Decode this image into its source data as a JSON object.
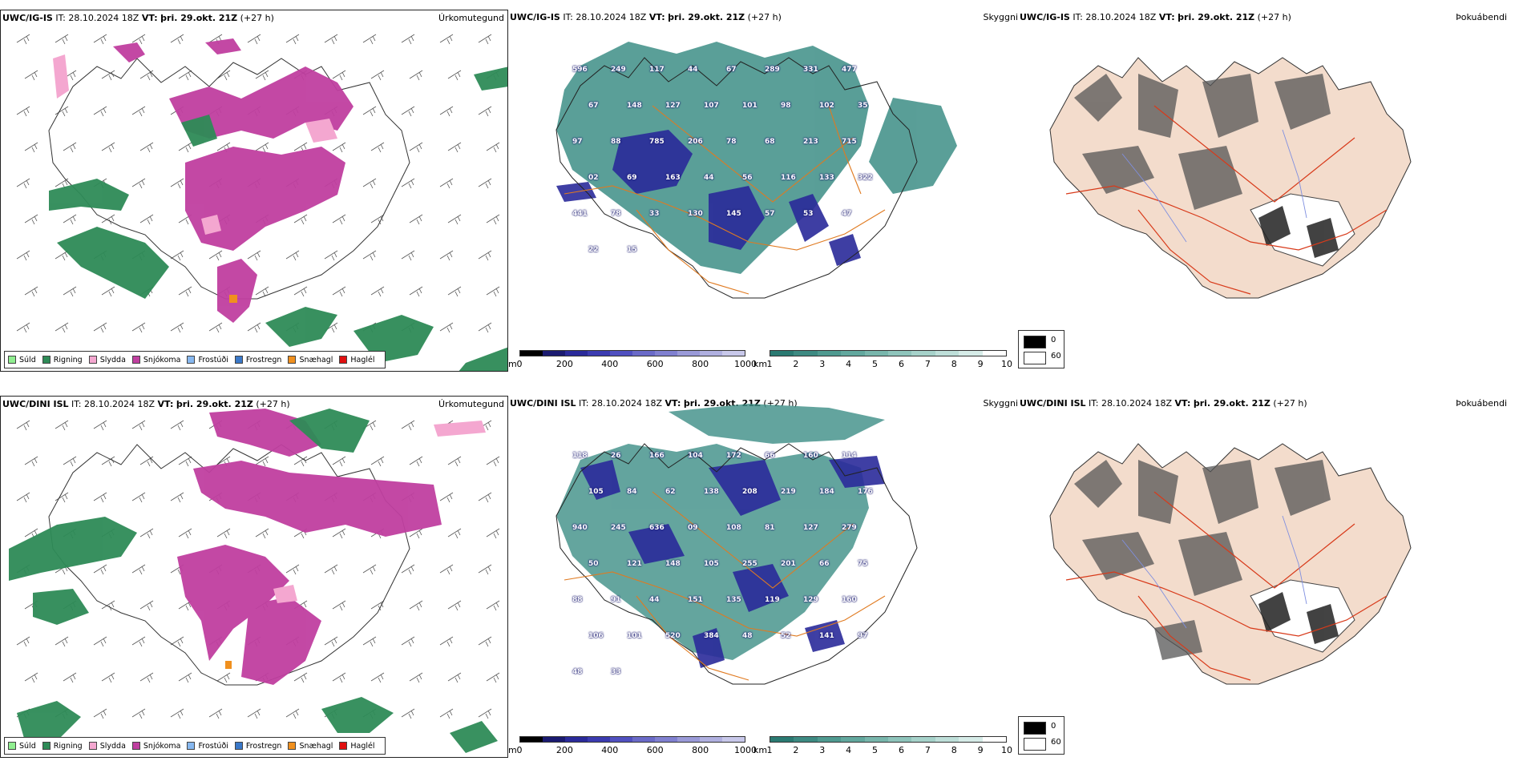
{
  "rows": [
    {
      "id": "uwc-ig-is",
      "precip": {
        "model": "UWC/IG-IS",
        "it_label": "IT:",
        "it_value": "28.10.2024 18Z",
        "vt_label": "VT:",
        "vt_value": "þri. 29.okt. 21Z",
        "lead": "(+27 h)",
        "title": "Úrkomutegund"
      },
      "cloud": {
        "model": "UWC/IG-IS",
        "it_label": "IT:",
        "it_value": "28.10.2024 18Z",
        "vt_label": "VT:",
        "vt_value": "þri. 29.okt. 21Z",
        "lead": "(+27 h)",
        "title": "Skyggni",
        "elevations": [
          "596",
          "249",
          "117",
          "44",
          "67",
          "289",
          "331",
          "477",
          "67",
          "148",
          "127",
          "107",
          "101",
          "98",
          "102",
          "35",
          "97",
          "88",
          "785",
          "206",
          "78",
          "68",
          "213",
          "715",
          "02",
          "69",
          "163",
          "44",
          "56",
          "116",
          "133",
          "322",
          "441",
          "78",
          "33",
          "130",
          "145",
          "57",
          "53",
          "47",
          "22",
          "15"
        ]
      },
      "fog": {
        "model": "UWC/IG-IS",
        "it_label": "IT:",
        "it_value": "28.10.2024 18Z",
        "vt_label": "VT:",
        "vt_value": "þri. 29.okt. 21Z",
        "lead": "(+27 h)",
        "title": "Þokuábendi"
      }
    },
    {
      "id": "uwc-dini-isl",
      "precip": {
        "model": "UWC/DINI ISL",
        "it_label": "IT:",
        "it_value": "28.10.2024 18Z",
        "vt_label": "VT:",
        "vt_value": "þri. 29.okt. 21Z",
        "lead": "(+27 h)",
        "title": "Úrkomutegund"
      },
      "cloud": {
        "model": "UWC/DINI ISL",
        "it_label": "IT:",
        "it_value": "28.10.2024 18Z",
        "vt_label": "VT:",
        "vt_value": "þri. 29.okt. 21Z",
        "lead": "(+27 h)",
        "title": "Skyggni",
        "elevations": [
          "118",
          "26",
          "166",
          "104",
          "172",
          "66",
          "160",
          "114",
          "105",
          "84",
          "62",
          "138",
          "208",
          "219",
          "184",
          "176",
          "940",
          "245",
          "636",
          "09",
          "108",
          "81",
          "127",
          "279",
          "50",
          "121",
          "148",
          "105",
          "255",
          "201",
          "66",
          "75",
          "88",
          "91",
          "44",
          "151",
          "135",
          "119",
          "129",
          "160",
          "106",
          "101",
          "520",
          "384",
          "48",
          "52",
          "141",
          "97",
          "48",
          "33"
        ]
      },
      "fog": {
        "model": "UWC/DINI ISL",
        "it_label": "IT:",
        "it_value": "28.10.2024 18Z",
        "vt_label": "VT:",
        "vt_value": "þri. 29.okt. 21Z",
        "lead": "(+27 h)",
        "title": "Þokuábendi"
      }
    }
  ],
  "precip_legend": [
    {
      "label": "Súld",
      "color": "#90ee90"
    },
    {
      "label": "Rigning",
      "color": "#2e8b57"
    },
    {
      "label": "Slydda",
      "color": "#f4a7d0"
    },
    {
      "label": "Snjókoma",
      "color": "#c03fa0"
    },
    {
      "label": "Frostúði",
      "color": "#87b8f0"
    },
    {
      "label": "Frostregn",
      "color": "#3a78c8"
    },
    {
      "label": "Snæhagl",
      "color": "#f0901e"
    },
    {
      "label": "Haglél",
      "color": "#e01010"
    }
  ],
  "elev_bar": {
    "unit": "m",
    "ticks": [
      "0",
      "200",
      "400",
      "600",
      "800",
      "1000"
    ],
    "colors": [
      "#000000",
      "#1a1a70",
      "#2a2a9a",
      "#3b3bb0",
      "#5050c0",
      "#6a6ac8",
      "#8080d0",
      "#9a9ad8",
      "#b0b0e0",
      "#c8c8ea"
    ]
  },
  "vis_bar": {
    "unit": "km",
    "ticks": [
      "1",
      "2",
      "3",
      "4",
      "5",
      "6",
      "7",
      "8",
      "9",
      "10"
    ],
    "colors": [
      "#2a7a72",
      "#3d8a82",
      "#4f9a90",
      "#62a89e",
      "#78b6ac",
      "#8ec4bb",
      "#a6d2ca",
      "#bedfd9",
      "#d6ece8",
      "#ffffff"
    ]
  },
  "fog_box": {
    "top_label": "0",
    "bottom_label": "60",
    "top_color": "#000000",
    "bottom_color": "#ffffff"
  },
  "map_colors": {
    "snow": "#c03fa0",
    "rain": "#2e8b57",
    "sleet": "#f4a7d0",
    "teal": "#3d8e86",
    "blue": "#2a2a9a",
    "road": "#e07a20",
    "land": "#f3dccc",
    "redroad": "#d83a1a",
    "river": "#7f8fe0"
  }
}
